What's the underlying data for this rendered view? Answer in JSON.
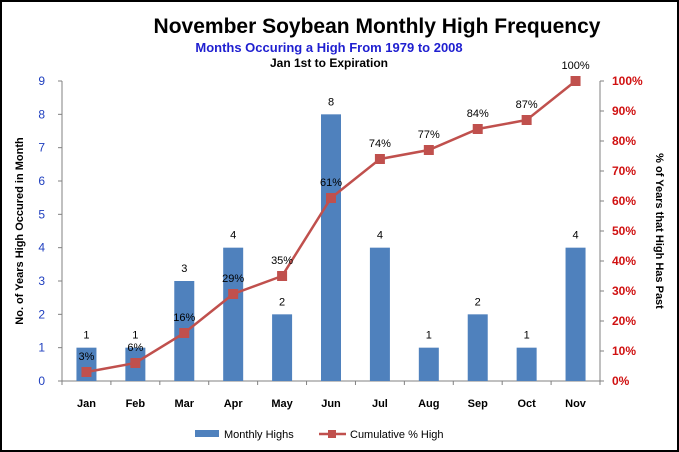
{
  "chart_data": {
    "type": "bar",
    "title": "November Soybean Monthly High Frequency",
    "subtitle": "Months Occuring  a High From 1979  to 2008",
    "subtitle2": "Jan 1st to Expiration",
    "categories": [
      "Jan",
      "Feb",
      "Mar",
      "Apr",
      "May",
      "Jun",
      "Jul",
      "Aug",
      "Sep",
      "Oct",
      "Nov"
    ],
    "series": [
      {
        "name": "Monthly Highs",
        "type": "bar",
        "axis": "left",
        "color": "#4f81bd",
        "values": [
          1,
          1,
          3,
          4,
          2,
          8,
          4,
          1,
          2,
          1,
          4
        ],
        "labels": [
          "1",
          "1",
          "3",
          "4",
          "2",
          "8",
          "4",
          "1",
          "2",
          "1",
          "4"
        ]
      },
      {
        "name": "Cumulative % High",
        "type": "line",
        "axis": "right",
        "color": "#c0504d",
        "values": [
          3,
          6,
          16,
          29,
          35,
          61,
          74,
          77,
          84,
          87,
          100
        ],
        "labels": [
          "3%",
          "6%",
          "16%",
          "29%",
          "35%",
          "61%",
          "74%",
          "77%",
          "84%",
          "87%",
          "100%"
        ]
      }
    ],
    "ylabel": "No. of Years High Occured in Month",
    "y2label": "% of Years that High Has Past",
    "ylim": [
      0,
      9
    ],
    "y2lim": [
      0,
      100
    ],
    "yticks": [
      "0",
      "1",
      "2",
      "3",
      "4",
      "5",
      "6",
      "7",
      "8",
      "9"
    ],
    "y2ticks": [
      "0%",
      "10%",
      "20%",
      "30%",
      "40%",
      "50%",
      "60%",
      "70%",
      "80%",
      "90%",
      "100%"
    ],
    "grid": false,
    "legend": "bottom",
    "colors": {
      "left_axis": "#1f3fbf",
      "right_axis": "#d01010",
      "subtitle": "#1f1fd0"
    }
  }
}
